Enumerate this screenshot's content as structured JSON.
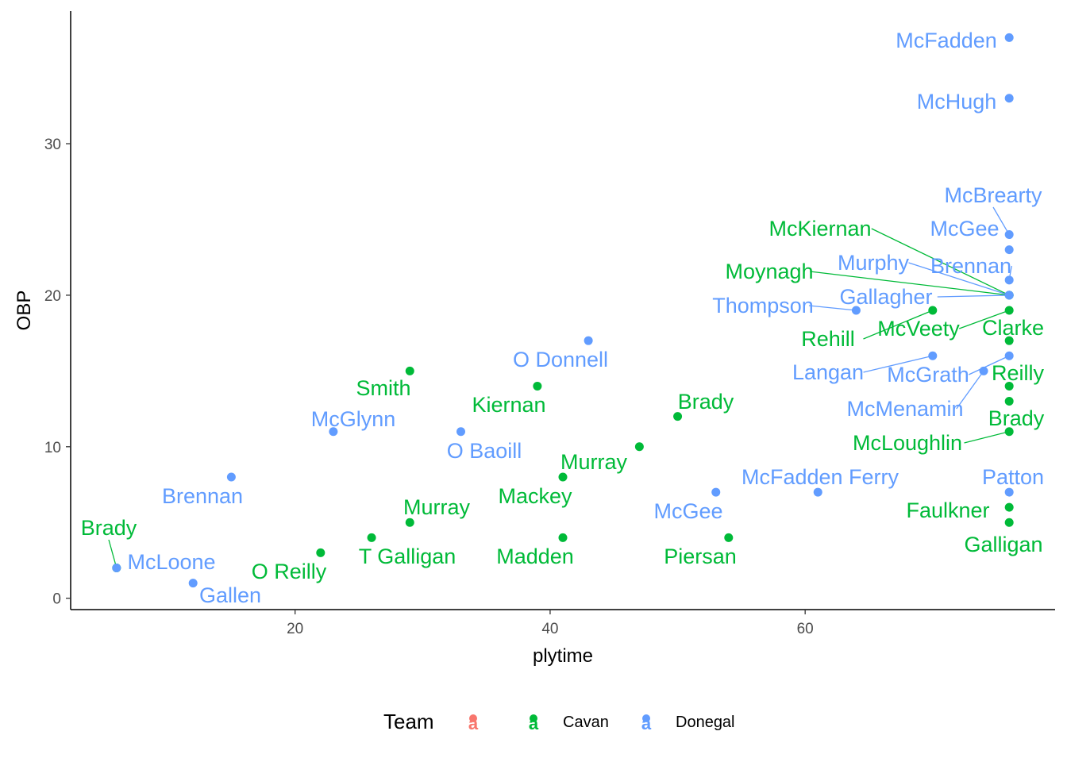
{
  "chart_data": {
    "type": "scatter",
    "title": "",
    "xlabel": "plytime",
    "ylabel": "OBP",
    "xlim": [
      2.4,
      79.6
    ],
    "ylim": [
      -0.75,
      38.75
    ],
    "x_ticks": [
      20,
      40,
      60
    ],
    "y_ticks": [
      0,
      10,
      20,
      30
    ],
    "grid": false,
    "legend": {
      "title": "Team",
      "position": "bottom",
      "entries": [
        {
          "label": "",
          "color": "#F8766D"
        },
        {
          "label": "Cavan",
          "color": "#00BA38"
        },
        {
          "label": "Donegal",
          "color": "#619CFF"
        }
      ]
    },
    "colors": {
      "Cavan": "#00BA38",
      "Donegal": "#619CFF",
      "other": "#F8766D"
    },
    "series": [
      {
        "name": "Cavan",
        "points": [
          {
            "x": 6,
            "y": 2,
            "label": "Brady"
          },
          {
            "x": 22,
            "y": 3,
            "label": "O Reilly"
          },
          {
            "x": 26,
            "y": 4,
            "label": "T Galligan"
          },
          {
            "x": 29,
            "y": 5,
            "label": "Murray"
          },
          {
            "x": 29,
            "y": 15,
            "label": "Smith"
          },
          {
            "x": 39,
            "y": 14,
            "label": "Kiernan"
          },
          {
            "x": 41,
            "y": 8,
            "label": "Mackey"
          },
          {
            "x": 41,
            "y": 4,
            "label": "Madden"
          },
          {
            "x": 47,
            "y": 10,
            "label": "Murray"
          },
          {
            "x": 50,
            "y": 12,
            "label": "Brady"
          },
          {
            "x": 54,
            "y": 4,
            "label": "Piersan"
          },
          {
            "x": 70,
            "y": 19,
            "label": "Rehill"
          },
          {
            "x": 76,
            "y": 20,
            "label": "McKiernan"
          },
          {
            "x": 76,
            "y": 20,
            "label": "Moynagh"
          },
          {
            "x": 76,
            "y": 19,
            "label": "McVeety"
          },
          {
            "x": 76,
            "y": 17,
            "label": "Clarke"
          },
          {
            "x": 76,
            "y": 14,
            "label": "Reilly"
          },
          {
            "x": 76,
            "y": 13,
            "label": "Brady"
          },
          {
            "x": 76,
            "y": 11,
            "label": "McLoughlin"
          },
          {
            "x": 76,
            "y": 6,
            "label": "Faulkner"
          },
          {
            "x": 76,
            "y": 5,
            "label": "Galligan"
          }
        ]
      },
      {
        "name": "Donegal",
        "points": [
          {
            "x": 6,
            "y": 2,
            "label": "McLoone"
          },
          {
            "x": 12,
            "y": 1,
            "label": "Gallen"
          },
          {
            "x": 15,
            "y": 8,
            "label": "Brennan"
          },
          {
            "x": 23,
            "y": 11,
            "label": "McGlynn"
          },
          {
            "x": 33,
            "y": 11,
            "label": "O Baoill"
          },
          {
            "x": 43,
            "y": 17,
            "label": "O Donnell"
          },
          {
            "x": 53,
            "y": 7,
            "label": "McGee"
          },
          {
            "x": 61,
            "y": 7,
            "label": "McFadden Ferry"
          },
          {
            "x": 64,
            "y": 19,
            "label": "Thompson"
          },
          {
            "x": 70,
            "y": 16,
            "label": "Langan"
          },
          {
            "x": 74,
            "y": 15,
            "label": "McMenamin"
          },
          {
            "x": 76,
            "y": 37,
            "label": "McFadden"
          },
          {
            "x": 76,
            "y": 33,
            "label": "McHugh"
          },
          {
            "x": 76,
            "y": 24,
            "label": "McBrearty"
          },
          {
            "x": 76,
            "y": 23,
            "label": "McGee"
          },
          {
            "x": 76,
            "y": 21,
            "label": "Brennan"
          },
          {
            "x": 76,
            "y": 20,
            "label": "Murphy"
          },
          {
            "x": 76,
            "y": 20,
            "label": "Gallagher"
          },
          {
            "x": 76,
            "y": 16,
            "label": "McGrath"
          },
          {
            "x": 76,
            "y": 7,
            "label": "Patton"
          }
        ]
      }
    ]
  }
}
